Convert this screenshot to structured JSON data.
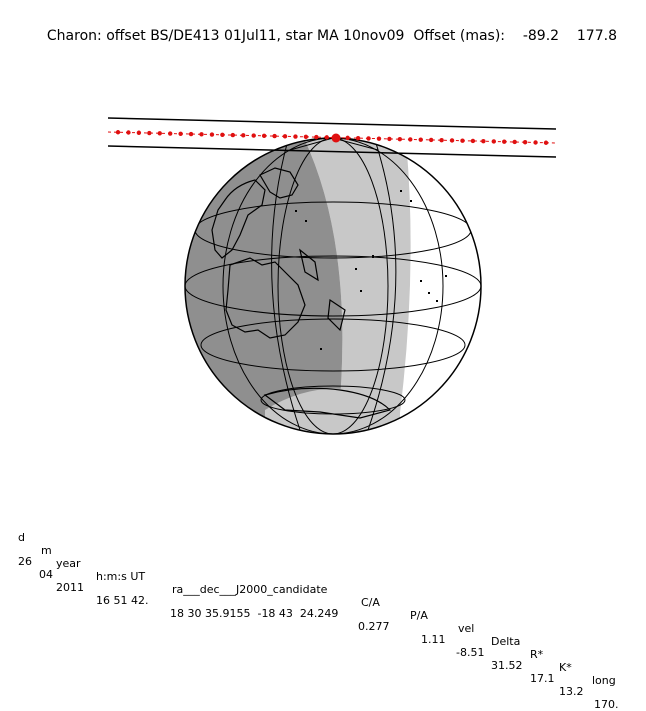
{
  "title": {
    "prefix": "Charon: offset BS/DE413 01Jul11, star MA 10nov09",
    "offset_label": "Offset (mas):",
    "offset_x": "-89.2",
    "offset_y": "177.8"
  },
  "table": {
    "headers": [
      "d",
      "m",
      "year",
      "h:m:s UT",
      "ra___dec___J2000_candidate",
      "C/A",
      "P/A",
      "vel",
      "Delta",
      "R*",
      "K*",
      "long"
    ],
    "values": [
      "26",
      "04",
      "2011",
      "16 51 42.",
      "18 30 35.9155  -18 43  24.249",
      "0.277",
      "1.11",
      "-8.51",
      "31.52",
      "17.1",
      "13.2",
      "170."
    ]
  },
  "colors": {
    "night": "#8f8f8f",
    "twilight": "#c8c8c8",
    "day": "#ffffff",
    "track": "#e01010",
    "lines": "#000000"
  }
}
